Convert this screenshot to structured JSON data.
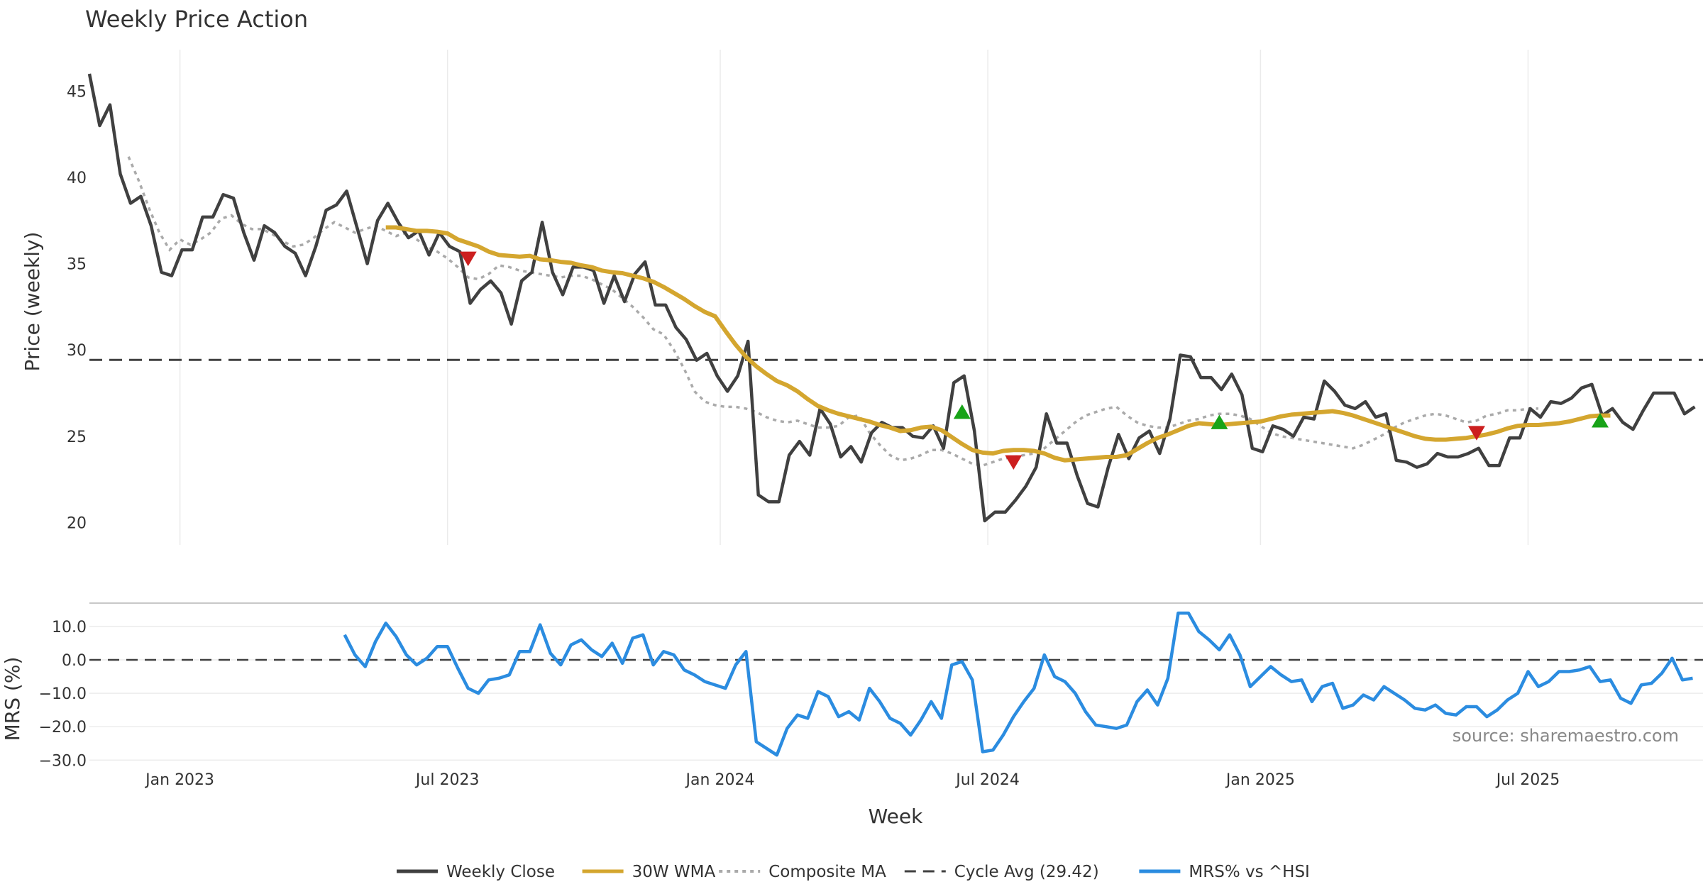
{
  "chart_data": {
    "type": "line",
    "title": "Weekly Price Action",
    "xlabel": "Week",
    "x_ticks": [
      "Jan 2023",
      "Jul 2023",
      "Jan 2024",
      "Jul 2024",
      "Jan 2025",
      "Jul 2025"
    ],
    "x_tick_weeks": [
      12,
      38,
      64.5,
      90.5,
      117,
      143
    ],
    "week_range": [
      3.2,
      160
    ],
    "price_panel": {
      "ylabel": "Price (weekly)",
      "ylim": [
        18.7,
        47.4
      ],
      "y_ticks": [
        20,
        25,
        30,
        35,
        40,
        45
      ],
      "cycle_avg": 29.42
    },
    "mrs_panel": {
      "ylabel": "MRS (%)",
      "ylim": [
        -31,
        17
      ],
      "y_ticks": [
        -30,
        -20,
        -10,
        0,
        10
      ],
      "y_tick_labels": [
        "−30.0",
        "−20.0",
        "−10.0",
        "0.0",
        "10.0"
      ]
    },
    "source_note": "source: sharemaestro.com",
    "series": [
      {
        "name": "Weekly Close",
        "color": "#404040",
        "start_week": 3.2,
        "values": [
          46,
          43,
          44.2,
          40.2,
          38.5,
          38.9,
          37.2,
          34.5,
          34.3,
          35.8,
          35.8,
          37.7,
          37.7,
          39.0,
          38.8,
          36.8,
          35.2,
          37.2,
          36.8,
          36.0,
          35.6,
          34.3,
          36.0,
          38.1,
          38.4,
          39.2,
          37.1,
          35.0,
          37.5,
          38.5,
          37.4,
          36.5,
          36.9,
          35.5,
          36.8,
          36.0,
          35.7,
          32.7,
          33.5,
          34.0,
          33.3,
          31.5,
          34.0,
          34.5,
          37.4,
          34.5,
          33.2,
          34.8,
          34.8,
          34.6,
          32.7,
          34.3,
          32.8,
          34.4,
          35.1,
          32.6,
          32.6,
          31.3,
          30.6,
          29.4,
          29.8,
          28.5,
          27.6,
          28.5,
          30.5,
          21.6,
          21.2,
          21.2,
          23.9,
          24.7,
          23.9,
          26.6,
          25.7,
          23.8,
          24.4,
          23.5,
          25.2,
          25.8,
          25.5,
          25.5,
          25.0,
          24.9,
          25.6,
          24.3,
          28.1,
          28.5,
          25.3,
          20.1,
          20.6,
          20.6,
          21.3,
          22.1,
          23.2,
          26.3,
          24.6,
          24.6,
          22.7,
          21.1,
          20.9,
          23.2,
          25.1,
          23.7,
          24.9,
          25.3,
          24.0,
          26.0,
          29.7,
          29.6,
          28.4,
          28.4,
          27.7,
          28.6,
          27.4,
          24.3,
          24.1,
          25.6,
          25.4,
          25.0,
          26.1,
          26.0,
          28.2,
          27.6,
          26.8,
          26.6,
          27.0,
          26.1,
          26.3,
          23.6,
          23.5,
          23.2,
          23.4,
          24.0,
          23.8,
          23.8,
          24.0,
          24.3,
          23.3,
          23.3,
          24.9,
          24.9,
          26.6,
          26.1,
          27.0,
          26.9,
          27.2,
          27.8,
          28.0,
          26.2,
          26.6,
          25.8,
          25.4,
          26.5,
          27.5,
          27.5,
          27.5,
          26.3,
          26.7
        ]
      },
      {
        "name": "30W WMA",
        "color": "#D4A62F",
        "start_week": 32,
        "values": [
          37.1,
          37.1,
          37.0,
          36.9,
          36.9,
          36.85,
          36.75,
          36.4,
          36.2,
          36.0,
          35.7,
          35.5,
          35.45,
          35.4,
          35.45,
          35.25,
          35.2,
          35.1,
          35.05,
          34.9,
          34.8,
          34.6,
          34.5,
          34.45,
          34.3,
          34.15,
          33.95,
          33.65,
          33.3,
          32.95,
          32.55,
          32.2,
          31.95,
          31.1,
          30.3,
          29.6,
          29.05,
          28.6,
          28.2,
          27.95,
          27.6,
          27.15,
          26.75,
          26.5,
          26.3,
          26.15,
          26.0,
          25.85,
          25.65,
          25.5,
          25.3,
          25.35,
          25.5,
          25.55,
          25.35,
          24.95,
          24.55,
          24.2,
          24.05,
          24.0,
          24.15,
          24.2,
          24.2,
          24.15,
          24.0,
          23.75,
          23.6,
          23.65,
          23.7,
          23.75,
          23.8,
          23.8,
          23.9,
          24.25,
          24.6,
          24.9,
          25.1,
          25.35,
          25.6,
          25.75,
          25.7,
          25.65,
          25.7,
          25.75,
          25.8,
          25.85,
          26.0,
          26.15,
          26.25,
          26.3,
          26.35,
          26.4,
          26.45,
          26.35,
          26.2,
          26.0,
          25.8,
          25.6,
          25.4,
          25.2,
          25.0,
          24.85,
          24.8,
          24.8,
          24.85,
          24.9,
          25.0,
          25.1,
          25.25,
          25.45,
          25.6,
          25.65,
          25.65,
          25.7,
          25.75,
          25.85,
          26.0,
          26.15,
          26.2,
          26.2
        ]
      },
      {
        "name": "Composite MA",
        "color": "#AAAAAA",
        "dashed": true,
        "start_week": 7,
        "values": [
          41.2,
          39.8,
          38.2,
          36.8,
          35.8,
          36.4,
          36.1,
          36.4,
          36.8,
          37.6,
          37.8,
          37.3,
          37.0,
          37.0,
          36.7,
          36.3,
          36.0,
          36.1,
          36.5,
          37.0,
          37.4,
          37.1,
          36.8,
          37.0,
          37.2,
          36.9,
          36.6,
          36.8,
          36.4,
          36.0,
          35.7,
          35.3,
          34.8,
          34.2,
          34.1,
          34.4,
          34.9,
          34.8,
          34.6,
          34.5,
          34.4,
          34.3,
          34.2,
          34.3,
          34.3,
          34.1,
          33.8,
          33.5,
          33.0,
          32.5,
          31.9,
          31.2,
          30.9,
          30.0,
          28.9,
          27.6,
          27.0,
          26.8,
          26.7,
          26.7,
          26.6,
          26.4,
          26.1,
          25.9,
          25.8,
          25.9,
          25.7,
          25.5,
          25.5,
          25.6,
          26.1,
          26.2,
          25.2,
          24.5,
          23.9,
          23.6,
          23.7,
          23.9,
          24.2,
          24.2,
          24.0,
          23.7,
          23.4,
          23.3,
          23.5,
          23.7,
          23.8,
          23.9,
          24.0,
          24.3,
          24.8,
          25.3,
          25.8,
          26.2,
          26.4,
          26.6,
          26.7,
          26.2,
          25.8,
          25.6,
          25.5,
          25.5,
          25.7,
          25.9,
          26.0,
          26.2,
          26.3,
          26.3,
          26.2,
          26.0,
          25.6,
          25.2,
          25.0,
          24.9,
          24.8,
          24.7,
          24.6,
          24.5,
          24.4,
          24.3,
          24.5,
          24.8,
          25.1,
          25.5,
          25.8,
          26.0,
          26.2,
          26.3,
          26.2,
          26.0,
          25.8,
          25.9,
          26.2,
          26.3,
          26.5,
          26.5,
          26.6,
          26.6
        ]
      },
      {
        "name": "Cycle Avg (29.42)",
        "color": "#404040",
        "dashed": true,
        "value": 29.42
      },
      {
        "name": "MRS% vs ^HSI",
        "color": "#2B8CE0",
        "start_week": 28,
        "values": [
          7.5,
          1.5,
          -2.0,
          5.5,
          11.0,
          7.0,
          1.5,
          -1.5,
          0.5,
          4.0,
          4.0,
          -2.5,
          -8.5,
          -10.0,
          -6.0,
          -5.5,
          -4.5,
          2.5,
          2.5,
          10.5,
          2.0,
          -1.5,
          4.5,
          6.0,
          3.0,
          1.0,
          5.0,
          -1.0,
          6.5,
          7.5,
          -1.5,
          2.5,
          1.5,
          -3.0,
          -4.5,
          -6.5,
          -7.5,
          -8.5,
          -1.5,
          2.5,
          -24.5,
          -26.5,
          -28.5,
          -20.5,
          -16.5,
          -17.5,
          -9.5,
          -11.0,
          -17.0,
          -15.5,
          -18.0,
          -8.5,
          -12.5,
          -17.5,
          -19.0,
          -22.5,
          -18.0,
          -12.5,
          -17.5,
          -1.5,
          -0.5,
          -6.0,
          -27.5,
          -27.0,
          -22.5,
          -17.0,
          -12.5,
          -8.5,
          1.5,
          -5.0,
          -6.5,
          -10.0,
          -15.5,
          -19.5,
          -20.0,
          -20.5,
          -19.5,
          -12.5,
          -9.0,
          -13.5,
          -5.5,
          14.0,
          14.0,
          8.5,
          6.0,
          3.0,
          7.5,
          1.5,
          -8.0,
          -5.0,
          -2.0,
          -4.5,
          -6.5,
          -6.0,
          -12.5,
          -8.0,
          -7.0,
          -14.5,
          -13.5,
          -10.5,
          -12.0,
          -8.0,
          -10.0,
          -12.0,
          -14.5,
          -15.0,
          -13.5,
          -16.0,
          -16.5,
          -14.0,
          -14.0,
          -17.0,
          -15.0,
          -12.0,
          -10.0,
          -3.5,
          -8.0,
          -6.5,
          -3.5,
          -3.5,
          -3.0,
          -2.0,
          -6.5,
          -6.0,
          -11.5,
          -13.0,
          -7.5,
          -7.0,
          -4.0,
          0.5,
          -6.0,
          -5.5
        ]
      }
    ],
    "markers": {
      "sell": [
        {
          "week": 40,
          "price": 35.3
        },
        {
          "week": 93,
          "price": 23.5
        },
        {
          "week": 138,
          "price": 25.2
        }
      ],
      "buy": [
        {
          "week": 88,
          "price": 26.4
        },
        {
          "week": 113,
          "price": 25.8
        },
        {
          "week": 150,
          "price": 25.9
        }
      ],
      "sell_color": "#CC1F1F",
      "buy_color": "#18A318"
    },
    "legend": [
      {
        "label": "Weekly Close",
        "style": "solid",
        "color": "#404040"
      },
      {
        "label": "30W WMA",
        "style": "solid",
        "color": "#D4A62F"
      },
      {
        "label": "Composite MA",
        "style": "dotted",
        "color": "#AAAAAA"
      },
      {
        "label": "Cycle Avg (29.42)",
        "style": "dashed",
        "color": "#404040"
      },
      {
        "label": "MRS% vs ^HSI",
        "style": "solid",
        "color": "#2B8CE0"
      }
    ]
  }
}
